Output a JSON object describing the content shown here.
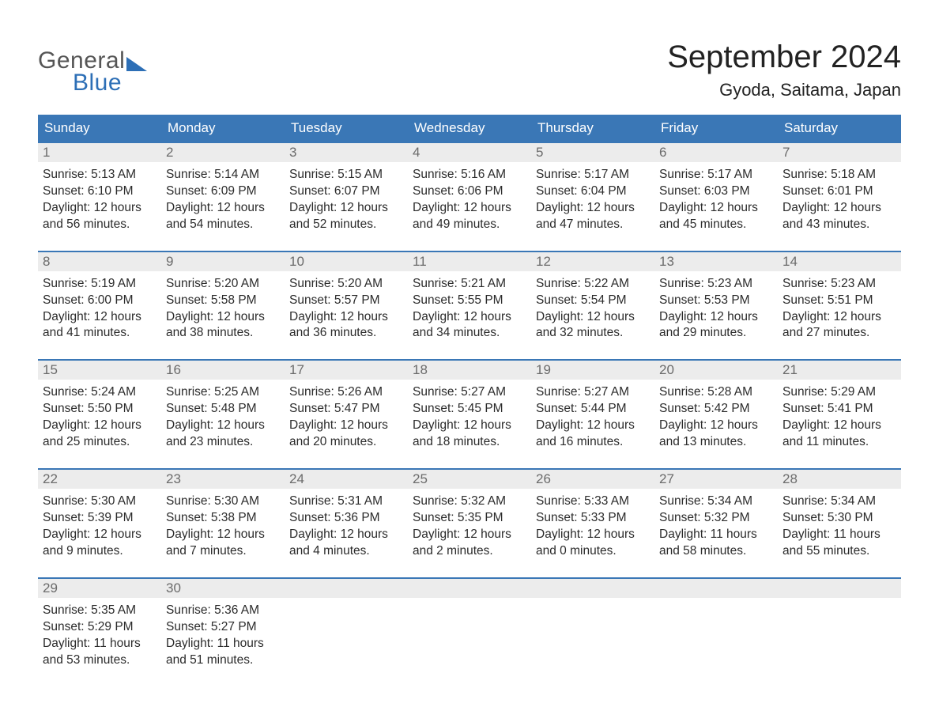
{
  "brand": {
    "word1": "General",
    "word2": "Blue",
    "accent": "#2d6fb6",
    "word1_color": "#555555"
  },
  "title": "September 2024",
  "location": "Gyoda, Saitama, Japan",
  "colors": {
    "header_bg": "#3a77b6",
    "header_text": "#ffffff",
    "daynum_bg": "#ececec",
    "daynum_text": "#6b6b6b",
    "body_text": "#2b2b2b",
    "rule": "#3a77b6",
    "page_bg": "#ffffff"
  },
  "days_of_week": [
    "Sunday",
    "Monday",
    "Tuesday",
    "Wednesday",
    "Thursday",
    "Friday",
    "Saturday"
  ],
  "weeks": [
    [
      {
        "n": "1",
        "sunrise": "5:13 AM",
        "sunset": "6:10 PM",
        "dl1": "Daylight: 12 hours",
        "dl2": "and 56 minutes."
      },
      {
        "n": "2",
        "sunrise": "5:14 AM",
        "sunset": "6:09 PM",
        "dl1": "Daylight: 12 hours",
        "dl2": "and 54 minutes."
      },
      {
        "n": "3",
        "sunrise": "5:15 AM",
        "sunset": "6:07 PM",
        "dl1": "Daylight: 12 hours",
        "dl2": "and 52 minutes."
      },
      {
        "n": "4",
        "sunrise": "5:16 AM",
        "sunset": "6:06 PM",
        "dl1": "Daylight: 12 hours",
        "dl2": "and 49 minutes."
      },
      {
        "n": "5",
        "sunrise": "5:17 AM",
        "sunset": "6:04 PM",
        "dl1": "Daylight: 12 hours",
        "dl2": "and 47 minutes."
      },
      {
        "n": "6",
        "sunrise": "5:17 AM",
        "sunset": "6:03 PM",
        "dl1": "Daylight: 12 hours",
        "dl2": "and 45 minutes."
      },
      {
        "n": "7",
        "sunrise": "5:18 AM",
        "sunset": "6:01 PM",
        "dl1": "Daylight: 12 hours",
        "dl2": "and 43 minutes."
      }
    ],
    [
      {
        "n": "8",
        "sunrise": "5:19 AM",
        "sunset": "6:00 PM",
        "dl1": "Daylight: 12 hours",
        "dl2": "and 41 minutes."
      },
      {
        "n": "9",
        "sunrise": "5:20 AM",
        "sunset": "5:58 PM",
        "dl1": "Daylight: 12 hours",
        "dl2": "and 38 minutes."
      },
      {
        "n": "10",
        "sunrise": "5:20 AM",
        "sunset": "5:57 PM",
        "dl1": "Daylight: 12 hours",
        "dl2": "and 36 minutes."
      },
      {
        "n": "11",
        "sunrise": "5:21 AM",
        "sunset": "5:55 PM",
        "dl1": "Daylight: 12 hours",
        "dl2": "and 34 minutes."
      },
      {
        "n": "12",
        "sunrise": "5:22 AM",
        "sunset": "5:54 PM",
        "dl1": "Daylight: 12 hours",
        "dl2": "and 32 minutes."
      },
      {
        "n": "13",
        "sunrise": "5:23 AM",
        "sunset": "5:53 PM",
        "dl1": "Daylight: 12 hours",
        "dl2": "and 29 minutes."
      },
      {
        "n": "14",
        "sunrise": "5:23 AM",
        "sunset": "5:51 PM",
        "dl1": "Daylight: 12 hours",
        "dl2": "and 27 minutes."
      }
    ],
    [
      {
        "n": "15",
        "sunrise": "5:24 AM",
        "sunset": "5:50 PM",
        "dl1": "Daylight: 12 hours",
        "dl2": "and 25 minutes."
      },
      {
        "n": "16",
        "sunrise": "5:25 AM",
        "sunset": "5:48 PM",
        "dl1": "Daylight: 12 hours",
        "dl2": "and 23 minutes."
      },
      {
        "n": "17",
        "sunrise": "5:26 AM",
        "sunset": "5:47 PM",
        "dl1": "Daylight: 12 hours",
        "dl2": "and 20 minutes."
      },
      {
        "n": "18",
        "sunrise": "5:27 AM",
        "sunset": "5:45 PM",
        "dl1": "Daylight: 12 hours",
        "dl2": "and 18 minutes."
      },
      {
        "n": "19",
        "sunrise": "5:27 AM",
        "sunset": "5:44 PM",
        "dl1": "Daylight: 12 hours",
        "dl2": "and 16 minutes."
      },
      {
        "n": "20",
        "sunrise": "5:28 AM",
        "sunset": "5:42 PM",
        "dl1": "Daylight: 12 hours",
        "dl2": "and 13 minutes."
      },
      {
        "n": "21",
        "sunrise": "5:29 AM",
        "sunset": "5:41 PM",
        "dl1": "Daylight: 12 hours",
        "dl2": "and 11 minutes."
      }
    ],
    [
      {
        "n": "22",
        "sunrise": "5:30 AM",
        "sunset": "5:39 PM",
        "dl1": "Daylight: 12 hours",
        "dl2": "and 9 minutes."
      },
      {
        "n": "23",
        "sunrise": "5:30 AM",
        "sunset": "5:38 PM",
        "dl1": "Daylight: 12 hours",
        "dl2": "and 7 minutes."
      },
      {
        "n": "24",
        "sunrise": "5:31 AM",
        "sunset": "5:36 PM",
        "dl1": "Daylight: 12 hours",
        "dl2": "and 4 minutes."
      },
      {
        "n": "25",
        "sunrise": "5:32 AM",
        "sunset": "5:35 PM",
        "dl1": "Daylight: 12 hours",
        "dl2": "and 2 minutes."
      },
      {
        "n": "26",
        "sunrise": "5:33 AM",
        "sunset": "5:33 PM",
        "dl1": "Daylight: 12 hours",
        "dl2": "and 0 minutes."
      },
      {
        "n": "27",
        "sunrise": "5:34 AM",
        "sunset": "5:32 PM",
        "dl1": "Daylight: 11 hours",
        "dl2": "and 58 minutes."
      },
      {
        "n": "28",
        "sunrise": "5:34 AM",
        "sunset": "5:30 PM",
        "dl1": "Daylight: 11 hours",
        "dl2": "and 55 minutes."
      }
    ],
    [
      {
        "n": "29",
        "sunrise": "5:35 AM",
        "sunset": "5:29 PM",
        "dl1": "Daylight: 11 hours",
        "dl2": "and 53 minutes."
      },
      {
        "n": "30",
        "sunrise": "5:36 AM",
        "sunset": "5:27 PM",
        "dl1": "Daylight: 11 hours",
        "dl2": "and 51 minutes."
      },
      {
        "empty": true
      },
      {
        "empty": true
      },
      {
        "empty": true
      },
      {
        "empty": true
      },
      {
        "empty": true
      }
    ]
  ],
  "labels": {
    "sunrise": "Sunrise:",
    "sunset": "Sunset:"
  }
}
